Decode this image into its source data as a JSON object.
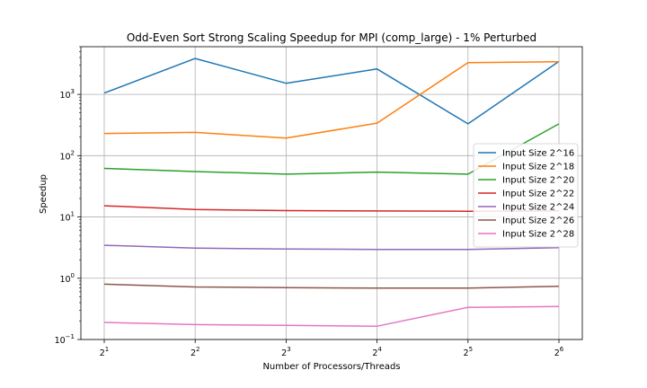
{
  "chart_data": {
    "type": "line",
    "title": "Odd-Even Sort Strong Scaling Speedup for MPI (comp_large) - 1% Perturbed",
    "xlabel": "Number of Processors/Threads",
    "ylabel": "Speedup",
    "x": [
      2,
      4,
      8,
      16,
      32,
      64
    ],
    "x_tick_labels": [
      {
        "base": "2",
        "exp": "1"
      },
      {
        "base": "2",
        "exp": "2"
      },
      {
        "base": "2",
        "exp": "3"
      },
      {
        "base": "2",
        "exp": "4"
      },
      {
        "base": "2",
        "exp": "5"
      },
      {
        "base": "2",
        "exp": "6"
      }
    ],
    "y_scale": "log",
    "ylim": [
      0.1,
      6000
    ],
    "y_tick_labels": [
      {
        "value": 0.1,
        "base": "10",
        "exp": "−1"
      },
      {
        "value": 1,
        "base": "10",
        "exp": "0"
      },
      {
        "value": 10,
        "base": "10",
        "exp": "1"
      },
      {
        "value": 100,
        "base": "10",
        "exp": "2"
      },
      {
        "value": 1000,
        "base": "10",
        "exp": "3"
      }
    ],
    "grid": true,
    "legend_position": "center-right",
    "series": [
      {
        "name": "Input Size 2^16",
        "color": "#1f77b4",
        "values": [
          1050,
          3850,
          1520,
          2600,
          330,
          3450
        ]
      },
      {
        "name": "Input Size 2^18",
        "color": "#ff7f0e",
        "values": [
          230,
          240,
          193,
          340,
          3300,
          3400
        ]
      },
      {
        "name": "Input Size 2^20",
        "color": "#2ca02c",
        "values": [
          62,
          55,
          50,
          54,
          50,
          330
        ]
      },
      {
        "name": "Input Size 2^22",
        "color": "#d62728",
        "values": [
          15.2,
          13.2,
          12.7,
          12.5,
          12.4,
          12.6
        ]
      },
      {
        "name": "Input Size 2^24",
        "color": "#9467bd",
        "values": [
          3.45,
          3.1,
          3.0,
          2.95,
          2.95,
          3.15
        ]
      },
      {
        "name": "Input Size 2^26",
        "color": "#8c564b",
        "values": [
          0.8,
          0.72,
          0.7,
          0.69,
          0.69,
          0.74
        ]
      },
      {
        "name": "Input Size 2^28",
        "color": "#e377c2",
        "values": [
          0.19,
          0.175,
          0.17,
          0.165,
          0.335,
          0.345
        ]
      }
    ]
  }
}
